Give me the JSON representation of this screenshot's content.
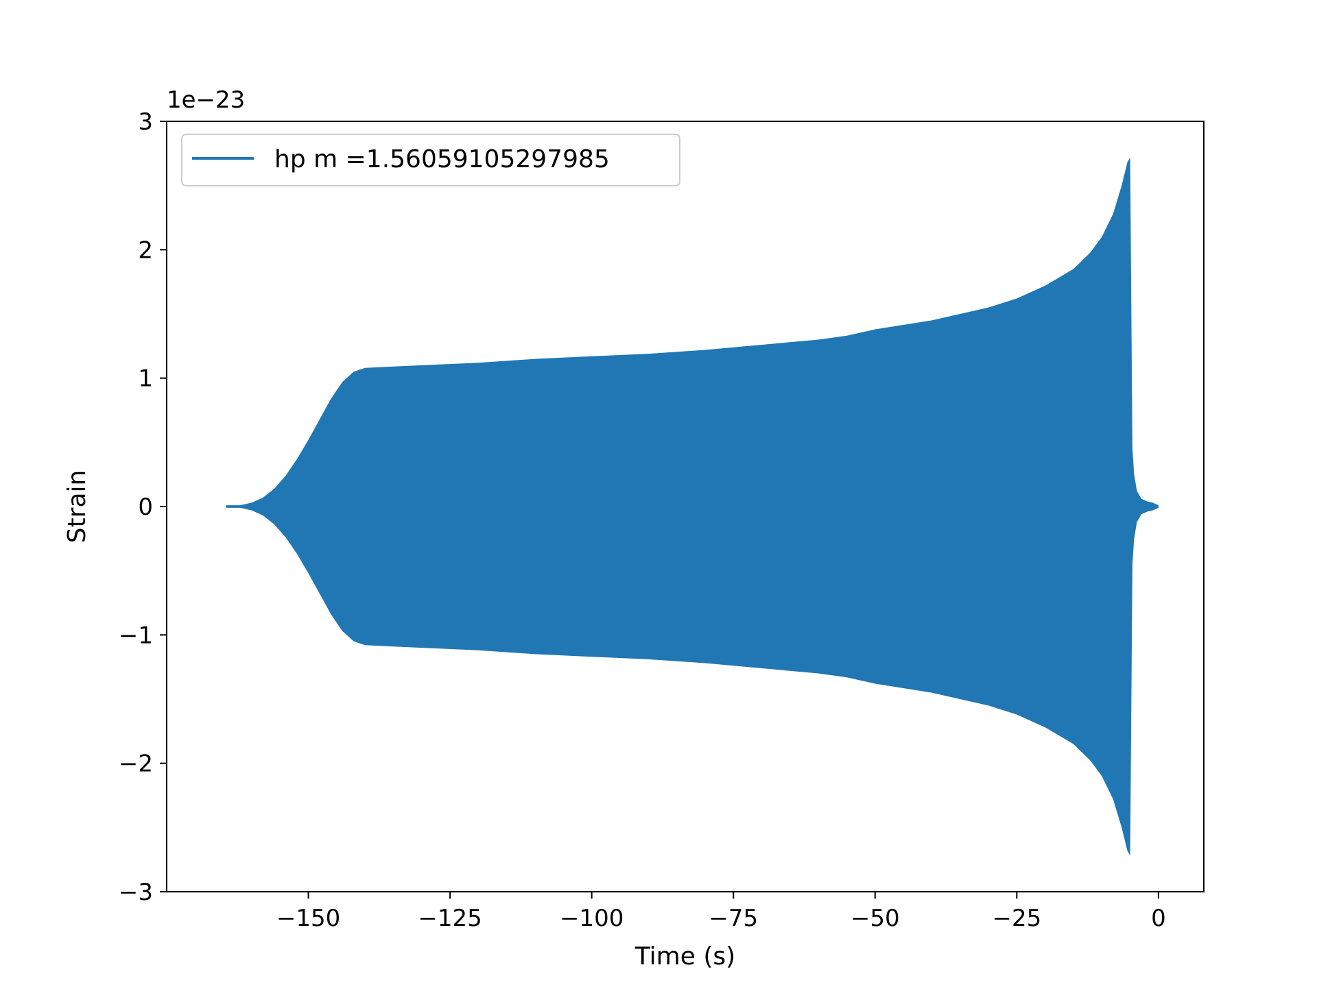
{
  "chart_data": {
    "type": "area",
    "xlabel": "Time (s)",
    "ylabel": "Strain",
    "offset_label": "1e−23",
    "xlim": [
      -175,
      8
    ],
    "ylim": [
      -3,
      3
    ],
    "xticks": [
      -150,
      -125,
      -100,
      -75,
      -50,
      -25,
      0
    ],
    "xtick_labels": [
      "−150",
      "−125",
      "−100",
      "−75",
      "−50",
      "−25",
      "0"
    ],
    "yticks": [
      3,
      2,
      1,
      0,
      -1,
      -2,
      -3
    ],
    "ytick_labels": [
      "3",
      "2",
      "1",
      "0",
      "−1",
      "−2",
      "−3"
    ],
    "grid": false,
    "legend_position": "upper-left",
    "color": "#2077b4",
    "series": [
      {
        "name": "hp m =1.56059105297985",
        "x": [
          -164.5,
          -162,
          -160,
          -158,
          -156,
          -154,
          -152,
          -150,
          -148,
          -146,
          -144,
          -142,
          -140,
          -135,
          -130,
          -120,
          -110,
          -100,
          -90,
          -80,
          -70,
          -60,
          -55,
          -50,
          -40,
          -30,
          -25,
          -20,
          -15,
          -12,
          -10,
          -8,
          -6.5,
          -5.5,
          -5,
          -4.6,
          -4.3,
          -3.8,
          -3,
          -2,
          -1,
          0
        ],
        "upper": [
          0.01,
          0.01,
          0.03,
          0.07,
          0.14,
          0.24,
          0.37,
          0.52,
          0.68,
          0.84,
          0.97,
          1.05,
          1.08,
          1.09,
          1.1,
          1.12,
          1.15,
          1.17,
          1.19,
          1.22,
          1.26,
          1.3,
          1.33,
          1.38,
          1.45,
          1.55,
          1.62,
          1.72,
          1.85,
          1.98,
          2.1,
          2.28,
          2.5,
          2.68,
          2.72,
          0.45,
          0.25,
          0.12,
          0.06,
          0.04,
          0.03,
          0.01
        ],
        "lower": [
          -0.01,
          -0.01,
          -0.03,
          -0.07,
          -0.14,
          -0.24,
          -0.37,
          -0.52,
          -0.68,
          -0.84,
          -0.97,
          -1.05,
          -1.08,
          -1.09,
          -1.1,
          -1.12,
          -1.15,
          -1.17,
          -1.19,
          -1.22,
          -1.26,
          -1.3,
          -1.33,
          -1.38,
          -1.45,
          -1.55,
          -1.62,
          -1.72,
          -1.85,
          -1.98,
          -2.1,
          -2.28,
          -2.5,
          -2.68,
          -2.72,
          -0.45,
          -0.25,
          -0.12,
          -0.06,
          -0.04,
          -0.03,
          -0.01
        ]
      }
    ]
  }
}
